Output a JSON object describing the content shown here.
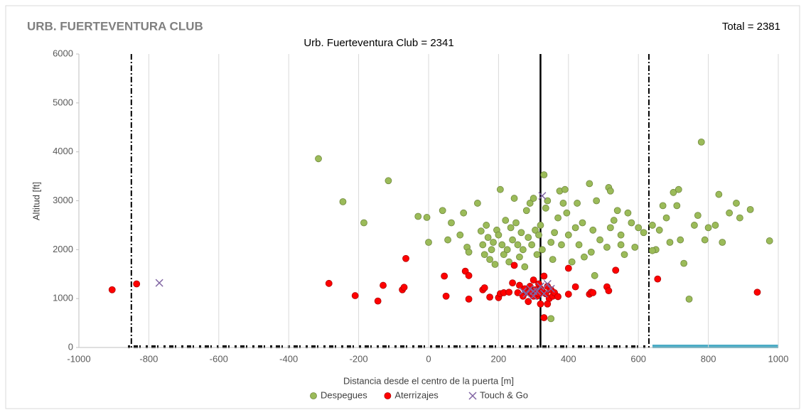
{
  "chart_data": {
    "type": "scatter",
    "title": "URB. FUERTEVENTURA CLUB",
    "subtitle": "Urb. Fuerteventura Club = 2341",
    "total": "Total = 2381",
    "x_label": "Distancia desde el centro de la puerta [m]",
    "y_label": "Altitud [ft]",
    "xlim": [
      -1000,
      1000
    ],
    "ylim": [
      0,
      6000
    ],
    "xticks": [
      -1000,
      -800,
      -600,
      -400,
      -200,
      0,
      200,
      400,
      600,
      800,
      1000
    ],
    "yticks": [
      0,
      1000,
      2000,
      3000,
      4000,
      5000,
      6000
    ],
    "grid": "x",
    "legend": "bottom",
    "vlines": [
      {
        "x": -850,
        "style": "dashdot"
      },
      {
        "x": 320,
        "style": "solid"
      },
      {
        "x": 630,
        "style": "dashdot"
      }
    ],
    "series": [
      {
        "name": "Despegues",
        "color": "#9bbb59",
        "marker": "circle",
        "points": [
          [
            -315,
            3860
          ],
          [
            -245,
            2980
          ],
          [
            -185,
            2550
          ],
          [
            -115,
            3410
          ],
          [
            -30,
            2680
          ],
          [
            -5,
            2660
          ],
          [
            0,
            2150
          ],
          [
            40,
            2800
          ],
          [
            55,
            2200
          ],
          [
            65,
            2550
          ],
          [
            90,
            2300
          ],
          [
            100,
            2750
          ],
          [
            110,
            2050
          ],
          [
            115,
            1950
          ],
          [
            140,
            2950
          ],
          [
            150,
            2380
          ],
          [
            155,
            2100
          ],
          [
            160,
            1900
          ],
          [
            165,
            2500
          ],
          [
            170,
            2250
          ],
          [
            175,
            1800
          ],
          [
            180,
            2000
          ],
          [
            185,
            2150
          ],
          [
            190,
            1700
          ],
          [
            195,
            2400
          ],
          [
            200,
            2300
          ],
          [
            205,
            3230
          ],
          [
            210,
            2100
          ],
          [
            215,
            1900
          ],
          [
            220,
            2600
          ],
          [
            225,
            2000
          ],
          [
            230,
            1750
          ],
          [
            235,
            2450
          ],
          [
            240,
            2200
          ],
          [
            245,
            3050
          ],
          [
            250,
            2550
          ],
          [
            255,
            2100
          ],
          [
            260,
            1850
          ],
          [
            265,
            2350
          ],
          [
            270,
            2000
          ],
          [
            275,
            1650
          ],
          [
            280,
            2800
          ],
          [
            285,
            2250
          ],
          [
            290,
            2950
          ],
          [
            295,
            2100
          ],
          [
            300,
            3050
          ],
          [
            305,
            2400
          ],
          [
            310,
            1900
          ],
          [
            315,
            2300
          ],
          [
            320,
            2500
          ],
          [
            325,
            2000
          ],
          [
            330,
            3530
          ],
          [
            335,
            2850
          ],
          [
            340,
            3000
          ],
          [
            350,
            2150
          ],
          [
            355,
            1800
          ],
          [
            360,
            2350
          ],
          [
            370,
            2650
          ],
          [
            375,
            3200
          ],
          [
            380,
            2100
          ],
          [
            385,
            2950
          ],
          [
            390,
            3230
          ],
          [
            395,
            2750
          ],
          [
            400,
            2300
          ],
          [
            410,
            1750
          ],
          [
            420,
            2450
          ],
          [
            425,
            2950
          ],
          [
            430,
            2100
          ],
          [
            440,
            2550
          ],
          [
            445,
            1850
          ],
          [
            460,
            3350
          ],
          [
            465,
            1950
          ],
          [
            470,
            2400
          ],
          [
            480,
            3000
          ],
          [
            490,
            2200
          ],
          [
            510,
            2050
          ],
          [
            515,
            3270
          ],
          [
            520,
            3200
          ],
          [
            530,
            2600
          ],
          [
            540,
            2800
          ],
          [
            550,
            2300
          ],
          [
            560,
            1900
          ],
          [
            570,
            2750
          ],
          [
            580,
            2550
          ],
          [
            590,
            2050
          ],
          [
            600,
            2450
          ],
          [
            615,
            2350
          ],
          [
            640,
            2500
          ],
          [
            650,
            2000
          ],
          [
            660,
            2400
          ],
          [
            670,
            2900
          ],
          [
            680,
            2650
          ],
          [
            690,
            2150
          ],
          [
            700,
            3170
          ],
          [
            710,
            2900
          ],
          [
            715,
            3230
          ],
          [
            720,
            2200
          ],
          [
            730,
            1720
          ],
          [
            745,
            990
          ],
          [
            760,
            2500
          ],
          [
            770,
            2700
          ],
          [
            780,
            4200
          ],
          [
            790,
            2200
          ],
          [
            800,
            2450
          ],
          [
            820,
            2500
          ],
          [
            830,
            3130
          ],
          [
            840,
            2150
          ],
          [
            860,
            2750
          ],
          [
            880,
            2950
          ],
          [
            890,
            2650
          ],
          [
            920,
            2820
          ],
          [
            975,
            2180
          ],
          [
            350,
            590
          ],
          [
            475,
            1470
          ],
          [
            520,
            2450
          ],
          [
            550,
            2100
          ],
          [
            640,
            1980
          ]
        ]
      },
      {
        "name": "Aterrizajes",
        "color": "#ff0000",
        "marker": "circle",
        "points": [
          [
            -905,
            1180
          ],
          [
            -835,
            1300
          ],
          [
            -285,
            1310
          ],
          [
            -210,
            1060
          ],
          [
            -145,
            950
          ],
          [
            -130,
            1270
          ],
          [
            -75,
            1180
          ],
          [
            -70,
            1230
          ],
          [
            -65,
            1820
          ],
          [
            45,
            1460
          ],
          [
            50,
            1050
          ],
          [
            105,
            1560
          ],
          [
            115,
            1470
          ],
          [
            115,
            990
          ],
          [
            155,
            1180
          ],
          [
            160,
            1220
          ],
          [
            175,
            1030
          ],
          [
            200,
            1020
          ],
          [
            205,
            1100
          ],
          [
            215,
            1120
          ],
          [
            230,
            1130
          ],
          [
            240,
            1320
          ],
          [
            245,
            1680
          ],
          [
            255,
            1120
          ],
          [
            260,
            1270
          ],
          [
            270,
            1050
          ],
          [
            275,
            1200
          ],
          [
            280,
            1130
          ],
          [
            285,
            940
          ],
          [
            290,
            1250
          ],
          [
            295,
            1100
          ],
          [
            300,
            1380
          ],
          [
            305,
            1180
          ],
          [
            310,
            1050
          ],
          [
            315,
            1300
          ],
          [
            320,
            1200
          ],
          [
            325,
            1150
          ],
          [
            330,
            1460
          ],
          [
            335,
            1100
          ],
          [
            340,
            1250
          ],
          [
            345,
            1000
          ],
          [
            350,
            1180
          ],
          [
            355,
            1050
          ],
          [
            360,
            1120
          ],
          [
            320,
            890
          ],
          [
            340,
            890
          ],
          [
            330,
            610
          ],
          [
            370,
            1040
          ],
          [
            400,
            1620
          ],
          [
            420,
            1240
          ],
          [
            400,
            1090
          ],
          [
            460,
            1090
          ],
          [
            465,
            1130
          ],
          [
            470,
            1120
          ],
          [
            510,
            1240
          ],
          [
            515,
            1160
          ],
          [
            535,
            1580
          ],
          [
            655,
            1400
          ],
          [
            940,
            1130
          ],
          [
            300,
            1050
          ],
          [
            315,
            1100
          ],
          [
            290,
            1150
          ]
        ]
      },
      {
        "name": "Touch & Go",
        "color": "#8064a2",
        "marker": "x",
        "points": [
          [
            -770,
            1320
          ],
          [
            270,
            1150
          ],
          [
            280,
            1100
          ],
          [
            290,
            1200
          ],
          [
            300,
            1050
          ],
          [
            310,
            1150
          ],
          [
            320,
            1250
          ],
          [
            330,
            1100
          ],
          [
            340,
            1300
          ],
          [
            350,
            1200
          ],
          [
            325,
            3100
          ],
          [
            300,
            1150
          ]
        ]
      }
    ]
  }
}
